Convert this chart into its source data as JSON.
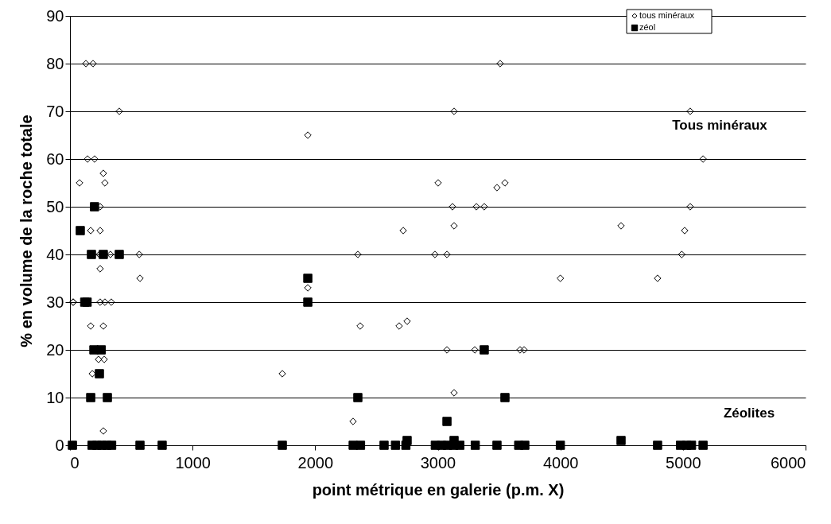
{
  "chart_data": {
    "type": "scatter",
    "xlabel": "point métrique en galerie (p.m. X)",
    "ylabel": "% en volume de la roche totale",
    "xlim": [
      0,
      6000
    ],
    "ylim": [
      0,
      90
    ],
    "xticks": [
      0,
      1000,
      2000,
      3000,
      4000,
      5000,
      6000
    ],
    "yticks": [
      0,
      10,
      20,
      30,
      40,
      50,
      60,
      70,
      80,
      90
    ],
    "grid": "y",
    "legend": "top right",
    "annotations": [
      "Tous minéraux",
      "Zéolites"
    ],
    "series": [
      {
        "name": "tous minéraux",
        "color": "#000000",
        "marker": "diamond",
        "x": [
          26,
          78,
          130,
          188,
          402,
          143,
          201,
          272,
          285,
          246,
          169,
          246,
          240,
          330,
          565,
          246,
          571,
          26,
          246,
          285,
          337,
          169,
          272,
          233,
          279,
          182,
          272,
          1940,
          3003,
          3483,
          3120,
          3315,
          3379,
          3133,
          2718,
          2348,
          2977,
          3075,
          1940,
          2750,
          2367,
          2685,
          3075,
          3302,
          1732,
          3133,
          2309,
          3509,
          3133,
          3548,
          4495,
          4990,
          4000,
          4793,
          3671,
          3704,
          5059,
          5164,
          5059,
          5014
        ],
        "values": [
          30,
          55,
          80,
          80,
          70,
          60,
          60,
          57,
          55,
          50,
          45,
          45,
          40,
          40,
          40,
          37,
          35,
          30,
          30,
          30,
          30,
          25,
          25,
          18,
          18,
          15,
          3,
          65,
          55,
          54,
          50,
          50,
          50,
          46,
          45,
          40,
          40,
          40,
          33,
          26,
          25,
          25,
          20,
          20,
          15,
          11,
          5,
          80,
          70,
          55,
          46,
          40,
          35,
          35,
          20,
          20,
          70,
          60,
          50,
          45
        ]
      },
      {
        "name": "zéol",
        "color": "#000000",
        "marker": "square",
        "x": [
          200,
          84,
          175,
          272,
          402,
          120,
          140,
          195,
          255,
          240,
          169,
          305,
          20,
          180,
          220,
          260,
          300,
          340,
          571,
          752,
          1940,
          1940,
          3379,
          2348,
          3075,
          1732,
          2310,
          2370,
          2562,
          2655,
          2740,
          2750,
          2980,
          3030,
          3080,
          3130,
          3180,
          3133,
          3306,
          3483,
          3548,
          4000,
          4495,
          4793,
          4980,
          5030,
          5070,
          5164,
          3660,
          3710
        ],
        "values": [
          50,
          45,
          40,
          40,
          40,
          30,
          30,
          20,
          20,
          15,
          10,
          10,
          0,
          0,
          0,
          0,
          0,
          0,
          0,
          0,
          35,
          30,
          20,
          10,
          5,
          0,
          0,
          0,
          0,
          0,
          0,
          1,
          0,
          0,
          0,
          0,
          0,
          1,
          0,
          0,
          10,
          0,
          1,
          0,
          0,
          0,
          0,
          0,
          0,
          0
        ]
      }
    ]
  }
}
